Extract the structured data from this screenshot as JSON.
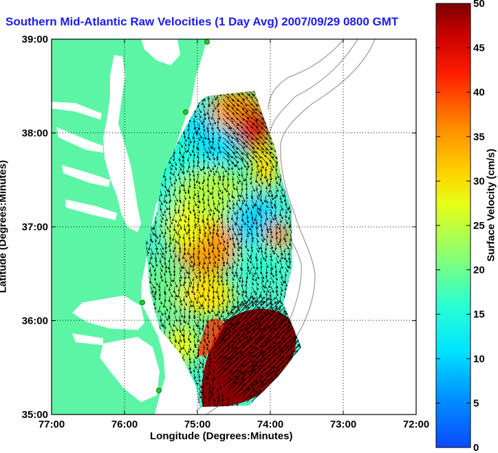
{
  "title": "Southern Mid-Atlantic Raw Velocities (1 Day Avg) 2007/09/29 0800 GMT",
  "xlabel": "Longitude (Degrees:Minutes)",
  "ylabel": "Latitude (Degrees:Minutes)",
  "colorbar_label": "Surface Velocity (cm/s)",
  "x_ticks": [
    "77:00",
    "76:00",
    "75:00",
    "74:00",
    "73:00",
    "72:00"
  ],
  "y_ticks": [
    "39:00",
    "38:00",
    "37:00",
    "36:00",
    "35:00"
  ],
  "colorbar_ticks": [
    "0",
    "5",
    "10",
    "15",
    "20",
    "25",
    "30",
    "35",
    "40",
    "45",
    "50"
  ],
  "map": {
    "lon_range": [
      -77,
      -72
    ],
    "lat_range": [
      35,
      39
    ],
    "velocity_range_cm_s": [
      0,
      50
    ],
    "grid": true,
    "land_color": "#5cf5a6",
    "water_color": "#ffffff",
    "station_color": "#22cc22"
  }
}
